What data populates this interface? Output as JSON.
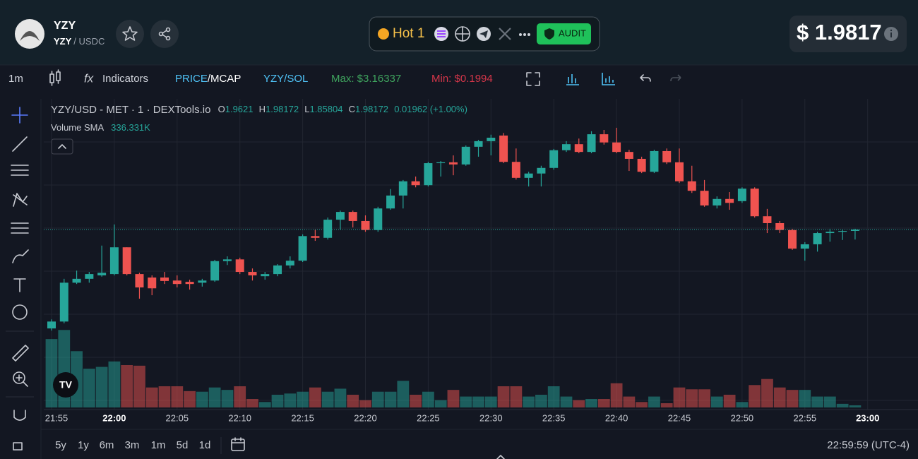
{
  "header": {
    "symbol": "YZY",
    "base": "YZY",
    "quote": "/ USDC",
    "hot": "Hot 1",
    "audit": "AUDIT",
    "price": "$ 1.9817"
  },
  "toolbar": {
    "interval": "1m",
    "indicators": "Indicators",
    "price": "PRICE",
    "mcap": "/MCAP",
    "pair": "YZY/SOL",
    "max": "Max: $3.16337",
    "min": "Min: $0.1994"
  },
  "legend": {
    "title": "YZY/USD - MET · 1 · DEXTools.io",
    "o_label": "O",
    "o": "1.9621",
    "h_label": "H",
    "h": "1.98172",
    "l_label": "L",
    "l": "1.85804",
    "c_label": "C",
    "c": "1.98172",
    "change": "0.01962 (+1.00%)",
    "volume_label": "Volume SMA",
    "volume": "336.331K"
  },
  "chart": {
    "type": "candlestick",
    "ylim": [
      1.74,
      2.28
    ],
    "volume_ylim": [
      0,
      1400
    ],
    "up_color": "#26a69a",
    "down_color": "#ef5350",
    "time_labels": [
      "21:55",
      "22:00",
      "22:05",
      "22:10",
      "22:15",
      "22:20",
      "22:25",
      "22:30",
      "22:35",
      "22:40",
      "22:45",
      "22:50",
      "22:55",
      "23:00"
    ],
    "candles": [
      [
        1.748,
        1.769,
        1.743,
        1.764
      ],
      [
        1.764,
        1.863,
        1.76,
        1.854
      ],
      [
        1.854,
        1.882,
        1.851,
        1.863
      ],
      [
        1.863,
        1.879,
        1.854,
        1.874
      ],
      [
        1.871,
        1.94,
        1.868,
        1.877
      ],
      [
        1.874,
        1.989,
        1.871,
        1.936
      ],
      [
        1.936,
        1.936,
        1.871,
        1.874
      ],
      [
        1.874,
        1.877,
        1.817,
        1.843
      ],
      [
        1.866,
        1.871,
        1.825,
        1.841
      ],
      [
        1.866,
        1.879,
        1.851,
        1.858
      ],
      [
        1.859,
        1.871,
        1.843,
        1.851
      ],
      [
        1.856,
        1.861,
        1.838,
        1.851
      ],
      [
        1.854,
        1.863,
        1.845,
        1.859
      ],
      [
        1.859,
        1.907,
        1.856,
        1.904
      ],
      [
        1.904,
        1.915,
        1.895,
        1.908
      ],
      [
        1.908,
        1.912,
        1.874,
        1.879
      ],
      [
        1.879,
        1.887,
        1.859,
        1.871
      ],
      [
        1.869,
        1.879,
        1.861,
        1.874
      ],
      [
        1.874,
        1.897,
        1.869,
        1.894
      ],
      [
        1.894,
        1.915,
        1.887,
        1.905
      ],
      [
        1.905,
        1.966,
        1.902,
        1.962
      ],
      [
        1.962,
        1.977,
        1.951,
        1.958
      ],
      [
        1.958,
        2.005,
        1.954,
        2.0
      ],
      [
        2.0,
        2.021,
        1.977,
        2.018
      ],
      [
        2.018,
        2.021,
        1.982,
        1.997
      ],
      [
        1.997,
        2.01,
        1.972,
        1.976
      ],
      [
        1.976,
        2.03,
        1.972,
        2.026
      ],
      [
        2.026,
        2.071,
        2.023,
        2.056
      ],
      [
        2.056,
        2.092,
        2.026,
        2.089
      ],
      [
        2.089,
        2.1,
        2.075,
        2.08
      ],
      [
        2.08,
        2.134,
        2.077,
        2.131
      ],
      [
        2.131,
        2.136,
        2.1,
        2.133
      ],
      [
        2.133,
        2.149,
        2.103,
        2.128
      ],
      [
        2.128,
        2.172,
        2.125,
        2.169
      ],
      [
        2.169,
        2.185,
        2.146,
        2.182
      ],
      [
        2.182,
        2.197,
        2.149,
        2.19
      ],
      [
        2.195,
        2.201,
        2.131,
        2.134
      ],
      [
        2.134,
        2.165,
        2.093,
        2.097
      ],
      [
        2.097,
        2.111,
        2.077,
        2.107
      ],
      [
        2.107,
        2.125,
        2.077,
        2.12
      ],
      [
        2.12,
        2.164,
        2.116,
        2.161
      ],
      [
        2.161,
        2.182,
        2.157,
        2.175
      ],
      [
        2.175,
        2.188,
        2.154,
        2.157
      ],
      [
        2.157,
        2.205,
        2.154,
        2.198
      ],
      [
        2.198,
        2.208,
        2.174,
        2.179
      ],
      [
        2.179,
        2.213,
        2.154,
        2.157
      ],
      [
        2.157,
        2.162,
        2.113,
        2.141
      ],
      [
        2.141,
        2.146,
        2.108,
        2.111
      ],
      [
        2.111,
        2.162,
        2.108,
        2.159
      ],
      [
        2.159,
        2.165,
        2.129,
        2.133
      ],
      [
        2.133,
        2.165,
        2.085,
        2.089
      ],
      [
        2.089,
        2.125,
        2.062,
        2.067
      ],
      [
        2.067,
        2.092,
        2.03,
        2.033
      ],
      [
        2.033,
        2.054,
        2.026,
        2.048
      ],
      [
        2.048,
        2.064,
        2.023,
        2.039
      ],
      [
        2.043,
        2.075,
        2.039,
        2.072
      ],
      [
        2.072,
        2.075,
        2.005,
        2.008
      ],
      [
        2.008,
        2.025,
        1.969,
        1.992
      ],
      [
        1.992,
        1.997,
        1.969,
        1.976
      ],
      [
        1.976,
        1.979,
        1.93,
        1.933
      ],
      [
        1.933,
        1.948,
        1.905,
        1.943
      ],
      [
        1.943,
        1.972,
        1.926,
        1.969
      ],
      [
        1.969,
        1.979,
        1.949,
        1.972
      ],
      [
        1.972,
        1.977,
        1.953,
        1.974
      ],
      [
        1.974,
        1.979,
        1.954,
        1.977
      ]
    ],
    "volumes": [
      1130,
      1280,
      930,
      640,
      670,
      760,
      700,
      690,
      330,
      350,
      350,
      270,
      260,
      330,
      290,
      350,
      140,
      90,
      210,
      230,
      260,
      330,
      260,
      310,
      210,
      120,
      260,
      260,
      440,
      210,
      260,
      120,
      290,
      180,
      180,
      180,
      350,
      350,
      180,
      210,
      350,
      180,
      120,
      140,
      140,
      400,
      180,
      90,
      180,
      70,
      330,
      300,
      300,
      180,
      210,
      90,
      370,
      470,
      330,
      290,
      290,
      180,
      180,
      60,
      35
    ]
  },
  "ranges": [
    "5y",
    "1y",
    "6m",
    "3m",
    "1m",
    "5d",
    "1d"
  ],
  "clock": "22:59:59 (UTC-4)"
}
